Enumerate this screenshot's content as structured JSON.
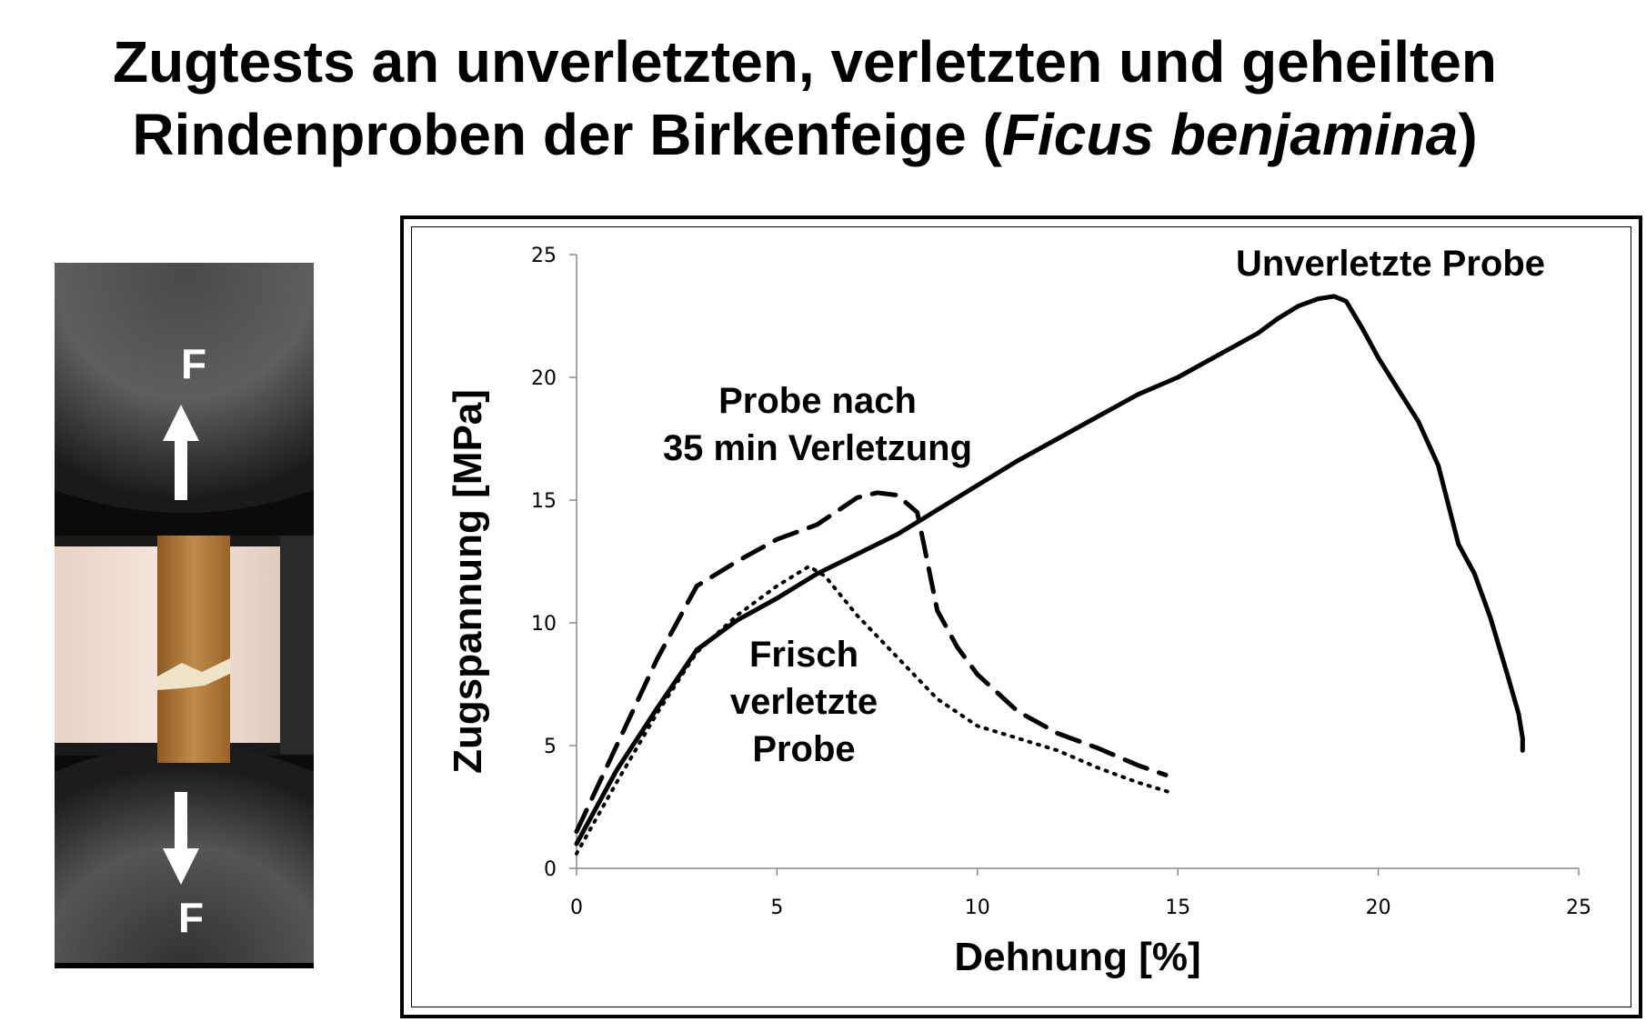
{
  "title": {
    "line1": "Zugtests an unverletzten, verletzten und geheilten",
    "line2_prefix": "Rindenproben der Birkenfeige (",
    "line2_italic": "Ficus benjamina",
    "line2_suffix": ")"
  },
  "photo": {
    "force_top": "F",
    "force_bottom": "F",
    "colors": {
      "background": "#0b0b0b",
      "sample": "#b07a3c",
      "backlight": "#f4e4da"
    }
  },
  "chart_data": {
    "type": "line",
    "xlabel": "Dehnung [%]",
    "ylabel": "Zugspannung [MPa]",
    "xlim": [
      0,
      25
    ],
    "ylim": [
      0,
      25
    ],
    "xticks": [
      0,
      5,
      10,
      15,
      20,
      25
    ],
    "yticks": [
      0,
      5,
      10,
      15,
      20,
      25
    ],
    "grid": false,
    "legend": "none",
    "series": [
      {
        "style": "solid",
        "color": "#000000",
        "points": [
          [
            0,
            1.0
          ],
          [
            1,
            4.0
          ],
          [
            2,
            6.5
          ],
          [
            3,
            8.9
          ],
          [
            4,
            10.1
          ],
          [
            5,
            11.0
          ],
          [
            6,
            12.0
          ],
          [
            7,
            12.8
          ],
          [
            8,
            13.6
          ],
          [
            9,
            14.6
          ],
          [
            10,
            15.6
          ],
          [
            11,
            16.6
          ],
          [
            12,
            17.5
          ],
          [
            13,
            18.4
          ],
          [
            14,
            19.3
          ],
          [
            15,
            20.0
          ],
          [
            16,
            20.9
          ],
          [
            17,
            21.8
          ],
          [
            17.5,
            22.4
          ],
          [
            18,
            22.9
          ],
          [
            18.5,
            23.2
          ],
          [
            18.9,
            23.3
          ],
          [
            19.2,
            23.1
          ],
          [
            19.6,
            22.0
          ],
          [
            20,
            20.8
          ],
          [
            20.5,
            19.5
          ],
          [
            21,
            18.2
          ],
          [
            21.5,
            16.4
          ],
          [
            22,
            13.2
          ],
          [
            22.4,
            12.0
          ],
          [
            22.8,
            10.2
          ],
          [
            23.2,
            8.0
          ],
          [
            23.5,
            6.3
          ],
          [
            23.6,
            5.3
          ],
          [
            23.6,
            4.8
          ]
        ]
      },
      {
        "style": "dashed",
        "color": "#000000",
        "points": [
          [
            0,
            1.5
          ],
          [
            1,
            5.0
          ],
          [
            2,
            8.5
          ],
          [
            3,
            11.5
          ],
          [
            4,
            12.5
          ],
          [
            5,
            13.4
          ],
          [
            6,
            14.0
          ],
          [
            7,
            15.1
          ],
          [
            7.5,
            15.3
          ],
          [
            8,
            15.2
          ],
          [
            8.5,
            14.5
          ],
          [
            9,
            10.5
          ],
          [
            9.5,
            9.0
          ],
          [
            10,
            7.9
          ],
          [
            11,
            6.4
          ],
          [
            12,
            5.5
          ],
          [
            13,
            4.9
          ],
          [
            14,
            4.2
          ],
          [
            14.7,
            3.8
          ]
        ]
      },
      {
        "style": "dotted",
        "color": "#000000",
        "points": [
          [
            0,
            0.6
          ],
          [
            1,
            3.5
          ],
          [
            2,
            6.3
          ],
          [
            3,
            8.8
          ],
          [
            4,
            10.3
          ],
          [
            5,
            11.5
          ],
          [
            5.8,
            12.3
          ],
          [
            6.2,
            11.9
          ],
          [
            7,
            10.3
          ],
          [
            8,
            8.6
          ],
          [
            9,
            6.9
          ],
          [
            10,
            5.8
          ],
          [
            11,
            5.3
          ],
          [
            12,
            4.8
          ],
          [
            13,
            4.1
          ],
          [
            14,
            3.5
          ],
          [
            14.8,
            3.1
          ]
        ]
      }
    ],
    "annotations": [
      {
        "lines": [
          "Unverletzte Probe"
        ]
      },
      {
        "lines": [
          "Probe nach",
          "35 min Verletzung"
        ]
      },
      {
        "lines": [
          "Frisch",
          "verletzte",
          "Probe"
        ]
      }
    ]
  }
}
